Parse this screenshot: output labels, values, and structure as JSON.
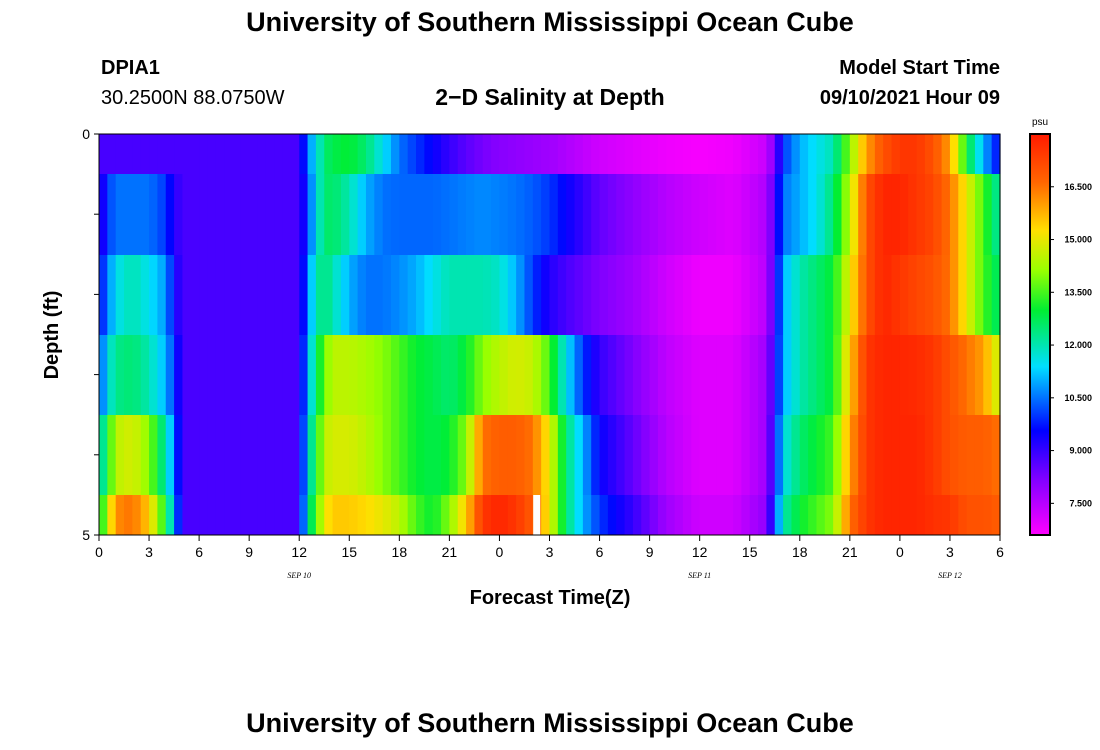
{
  "page": {
    "title_top": "University of Southern Mississippi Ocean Cube",
    "title_bottom": "University of Southern Mississippi Ocean Cube",
    "station": "DPIA1",
    "coords": "30.2500N  88.0750W",
    "subtitle": "2−D Salinity at Depth",
    "model_label": "Model Start Time",
    "model_time": "09/10/2021 Hour 09"
  },
  "chart_data": {
    "type": "heatmap",
    "title": "2−D Salinity at Depth",
    "xlabel": "Forecast Time(Z)",
    "ylabel": "Depth (ft)",
    "x_hours_from_sep10_00z": [
      0,
      54
    ],
    "y_range": [
      0,
      5
    ],
    "y_tick_labels": [
      "0",
      "5"
    ],
    "x_tick_labels": [
      "0",
      "3",
      "6",
      "9",
      "12",
      "15",
      "18",
      "21",
      "0",
      "3",
      "6",
      "9",
      "12",
      "15",
      "18",
      "21",
      "0",
      "3",
      "6"
    ],
    "date_labels": [
      {
        "text": "SEP 10",
        "hour": 12
      },
      {
        "text": "SEP 11",
        "hour": 36
      },
      {
        "text": "SEP 12",
        "hour": 51
      }
    ],
    "colorbar": {
      "unit": "psu",
      "min": 6.6,
      "max": 18.0,
      "tick_values": [
        7.5,
        9.0,
        10.5,
        12.0,
        13.5,
        15.0,
        16.5
      ],
      "tick_labels": [
        "7.500",
        "9.000",
        "10.500",
        "12.000",
        "13.500",
        "15.000",
        "16.500"
      ]
    },
    "depth_rows": [
      "0-0.5 ft",
      "0.5-1.5 ft",
      "1.5-2.5 ft",
      "2.5-3.5 ft",
      "3.5-4.5 ft",
      "4.5-5 ft"
    ],
    "time_knots": [
      0,
      0.5,
      1,
      2,
      3,
      4,
      4.5,
      5,
      5.5,
      6,
      9,
      12,
      12.5,
      13,
      13.5,
      14,
      15,
      16,
      17,
      18,
      19,
      20,
      21,
      22,
      23,
      24,
      25,
      26,
      27,
      28,
      29,
      30,
      32,
      34,
      36,
      38,
      40,
      40.5,
      41,
      42,
      43,
      44,
      45,
      46,
      47,
      48,
      49,
      50,
      51,
      52,
      53,
      54
    ],
    "salinity_psu": [
      [
        8.8,
        8.8,
        8.8,
        8.8,
        8.8,
        8.8,
        8.8,
        8.8,
        8.8,
        8.8,
        8.8,
        8.8,
        10.5,
        11.5,
        12.5,
        12.8,
        13.0,
        12.5,
        11.5,
        10.5,
        10.0,
        9.5,
        9.0,
        8.6,
        8.3,
        8.1,
        8.0,
        7.9,
        7.8,
        7.6,
        7.4,
        7.2,
        7.0,
        6.8,
        6.7,
        6.8,
        7.3,
        8.3,
        10.0,
        11.0,
        11.5,
        12.0,
        14.0,
        16.0,
        17.0,
        17.5,
        17.5,
        17.0,
        16.0,
        13.0,
        11.0,
        9.5
      ],
      [
        8.8,
        10.0,
        10.5,
        10.5,
        10.5,
        10.0,
        9.2,
        8.8,
        8.8,
        8.8,
        8.8,
        8.8,
        10.0,
        11.5,
        12.5,
        12.6,
        12.0,
        11.0,
        10.5,
        10.4,
        10.4,
        10.4,
        10.5,
        10.6,
        10.7,
        10.6,
        10.5,
        10.3,
        10.0,
        9.5,
        9.0,
        8.5,
        8.0,
        7.5,
        7.2,
        7.0,
        7.6,
        8.8,
        10.5,
        11.0,
        11.5,
        12.5,
        14.5,
        17.0,
        17.8,
        17.8,
        17.5,
        17.2,
        16.5,
        15.0,
        13.5,
        12.0
      ],
      [
        9.5,
        10.5,
        11.5,
        12.0,
        11.5,
        10.8,
        9.5,
        8.8,
        8.8,
        8.8,
        8.8,
        8.8,
        10.5,
        12.0,
        12.5,
        12.0,
        11.0,
        10.5,
        10.5,
        10.7,
        11.0,
        11.5,
        12.0,
        12.0,
        12.0,
        11.8,
        11.0,
        10.0,
        9.2,
        8.8,
        8.5,
        8.2,
        7.8,
        7.2,
        6.8,
        6.8,
        7.5,
        9.0,
        11.0,
        12.0,
        12.5,
        13.0,
        15.0,
        17.0,
        17.8,
        17.5,
        17.2,
        17.0,
        16.5,
        15.0,
        13.5,
        12.5
      ],
      [
        10.0,
        11.5,
        12.3,
        12.5,
        12.0,
        11.0,
        10.0,
        8.8,
        8.8,
        8.8,
        8.8,
        8.8,
        11.0,
        12.5,
        13.8,
        14.5,
        14.5,
        14.3,
        14.0,
        13.5,
        13.0,
        12.8,
        12.5,
        13.0,
        14.0,
        14.5,
        14.8,
        14.6,
        13.5,
        11.5,
        10.0,
        9.0,
        8.2,
        7.4,
        7.0,
        7.0,
        7.8,
        9.2,
        11.0,
        12.0,
        12.5,
        13.0,
        15.5,
        17.5,
        17.8,
        17.8,
        17.7,
        17.5,
        17.0,
        16.5,
        16.0,
        14.5
      ],
      [
        11.5,
        13.0,
        14.5,
        14.8,
        14.0,
        12.0,
        10.5,
        8.8,
        8.8,
        8.8,
        8.8,
        8.8,
        11.5,
        13.0,
        14.5,
        14.8,
        14.8,
        14.5,
        14.0,
        13.5,
        13.0,
        12.8,
        13.0,
        14.0,
        16.5,
        16.8,
        16.8,
        16.5,
        15.0,
        12.5,
        11.0,
        9.5,
        8.5,
        7.5,
        7.0,
        7.0,
        7.8,
        9.5,
        11.5,
        12.5,
        13.0,
        13.5,
        16.0,
        17.5,
        17.8,
        17.8,
        17.8,
        17.5,
        17.0,
        16.8,
        16.8,
        16.5
      ],
      [
        12.5,
        14.5,
        16.2,
        16.5,
        15.5,
        13.0,
        11.0,
        8.8,
        8.8,
        8.8,
        8.8,
        8.8,
        12.0,
        13.5,
        15.0,
        15.5,
        15.5,
        15.3,
        15.0,
        14.5,
        13.5,
        13.0,
        14.0,
        15.5,
        17.5,
        17.8,
        17.5,
        16.8,
        15.0,
        12.5,
        11.0,
        10.0,
        9.0,
        7.8,
        7.2,
        7.2,
        8.0,
        10.0,
        12.0,
        13.0,
        13.5,
        14.0,
        16.5,
        17.5,
        17.8,
        17.8,
        17.8,
        17.6,
        17.5,
        17.0,
        17.0,
        16.8
      ]
    ],
    "missing_gap": {
      "hour": 26.2,
      "row": 5
    }
  }
}
